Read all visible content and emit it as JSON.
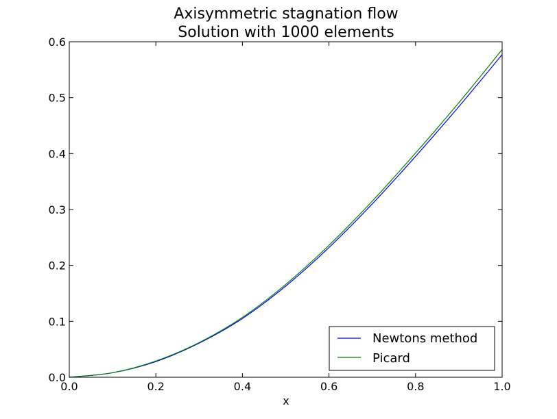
{
  "chart_data": {
    "type": "line",
    "title": "Axisymmetric stagnation flow",
    "subtitle": "Solution with 1000 elements",
    "xlabel": "x",
    "ylabel": "",
    "xlim": [
      0.0,
      1.0
    ],
    "ylim": [
      0.0,
      0.6
    ],
    "xticks": [
      "0.0",
      "0.2",
      "0.4",
      "0.6",
      "0.8",
      "1.0"
    ],
    "yticks": [
      "0.0",
      "0.1",
      "0.2",
      "0.3",
      "0.4",
      "0.5",
      "0.6"
    ],
    "grid": false,
    "legend_position": "lower-right",
    "x": [
      0.0,
      0.1,
      0.2,
      0.3,
      0.4,
      0.5,
      0.6,
      0.7,
      0.8,
      0.9,
      1.0
    ],
    "series": [
      {
        "name": "Newtons method",
        "color": "#0000ff",
        "values": [
          0.0,
          0.008,
          0.028,
          0.061,
          0.105,
          0.163,
          0.232,
          0.31,
          0.395,
          0.484,
          0.577
        ]
      },
      {
        "name": "Picard",
        "color": "#008000",
        "values": [
          0.0,
          0.008,
          0.029,
          0.062,
          0.107,
          0.166,
          0.236,
          0.315,
          0.401,
          0.491,
          0.586
        ]
      }
    ]
  }
}
